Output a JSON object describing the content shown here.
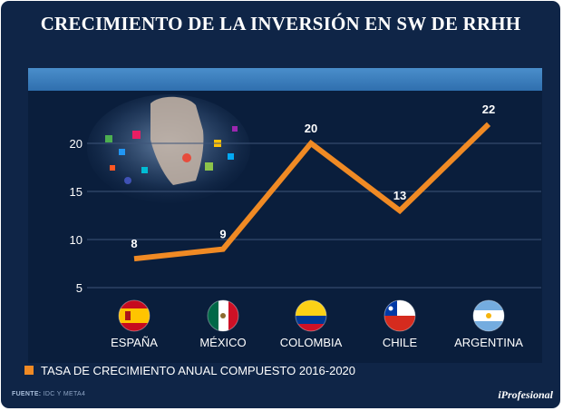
{
  "title": "CRECIMIENTO DE LA INVERSIÓN EN SW DE RRHH",
  "legend": {
    "label": "TASA DE CRECIMIENTO ANUAL COMPUESTO 2016-2020",
    "color": "#f08a24"
  },
  "source": {
    "prefix": "FUENTE:",
    "text": "IDC Y META4"
  },
  "brand": "iProfesional",
  "colors": {
    "background": "#0f2547",
    "accent": "#f08a24",
    "header_bar": "#3a7dbd"
  },
  "chart_data": {
    "type": "line",
    "title": "CRECIMIENTO DE LA INVERSIÓN EN SW DE RRHH",
    "categories": [
      "ESPAÑA",
      "MÉXICO",
      "COLOMBIA",
      "CHILE",
      "ARGENTINA"
    ],
    "series": [
      {
        "name": "TASA DE CRECIMIENTO ANUAL COMPUESTO 2016-2020",
        "values": [
          8,
          9,
          20,
          13,
          22
        ]
      }
    ],
    "yticks": [
      5,
      10,
      15,
      20
    ],
    "ylim": [
      5,
      22
    ],
    "grid": true,
    "xlabel": "",
    "ylabel": "",
    "legend_position": "bottom-left",
    "flags": [
      "spain-flag-icon",
      "mexico-flag-icon",
      "colombia-flag-icon",
      "chile-flag-icon",
      "argentina-flag-icon"
    ]
  }
}
